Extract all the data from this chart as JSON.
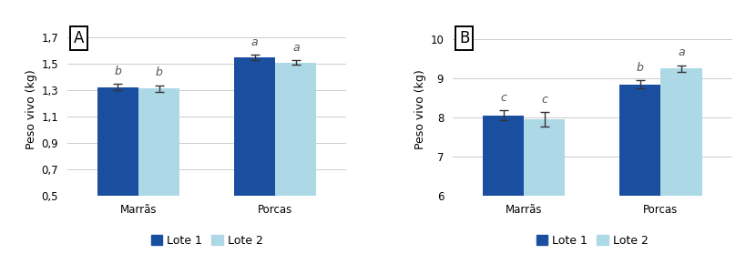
{
  "chart_A": {
    "label": "A",
    "categories": [
      "Marrãs",
      "Porcas"
    ],
    "lote1_values": [
      1.32,
      1.545
    ],
    "lote2_values": [
      1.31,
      1.505
    ],
    "lote1_errors": [
      0.025,
      0.018
    ],
    "lote2_errors": [
      0.025,
      0.018
    ],
    "sig_labels": [
      [
        "b",
        "b"
      ],
      [
        "a",
        "a"
      ]
    ],
    "ylabel": "Peso vivo (kg)",
    "ylim": [
      0.5,
      1.8
    ],
    "yticks": [
      0.5,
      0.7,
      0.9,
      1.1,
      1.3,
      1.5,
      1.7
    ]
  },
  "chart_B": {
    "label": "B",
    "categories": [
      "Marrãs",
      "Porcas"
    ],
    "lote1_values": [
      8.05,
      8.85
    ],
    "lote2_values": [
      7.95,
      9.25
    ],
    "lote1_errors": [
      0.13,
      0.1
    ],
    "lote2_errors": [
      0.18,
      0.09
    ],
    "sig_labels": [
      [
        "c",
        "c"
      ],
      [
        "b",
        "a"
      ]
    ],
    "ylabel": "Peso vivo (kg)",
    "ylim": [
      6,
      10.4
    ],
    "yticks": [
      6,
      7,
      8,
      9,
      10
    ]
  },
  "color_lote1": "#1a4fa0",
  "color_lote2": "#add8e6",
  "legend_labels": [
    "Lote 1",
    "Lote 2"
  ],
  "bar_width": 0.3,
  "sig_fontsize": 9,
  "axis_label_fontsize": 9,
  "tick_fontsize": 8.5,
  "legend_fontsize": 9,
  "panel_label_fontsize": 12,
  "background_color": "#ffffff",
  "grid_color": "#cccccc"
}
